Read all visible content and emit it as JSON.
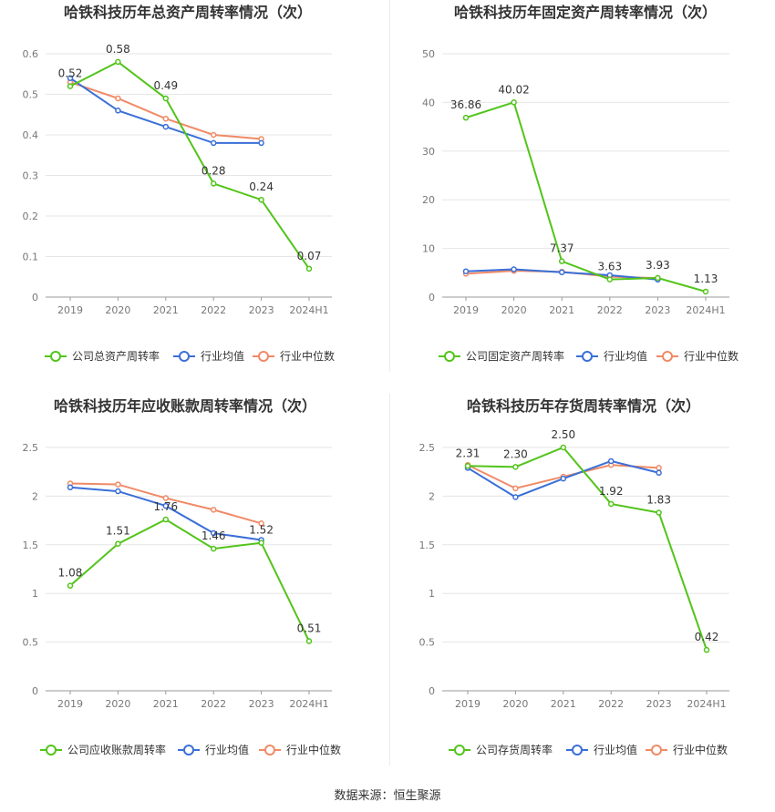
{
  "source_text": "数据来源：恒生聚源",
  "legend_common": {
    "industry_avg": "行业均值",
    "industry_median": "行业中位数"
  },
  "colors": {
    "company": "#52c41a",
    "industry_avg": "#3a6fd8",
    "industry_median": "#f08a66",
    "grid": "#e6e6e6",
    "axis": "#333333"
  },
  "chart_data": [
    {
      "type": "line",
      "title": "哈铁科技历年总资产周转率情况（次）",
      "categories": [
        "2019",
        "2020",
        "2021",
        "2022",
        "2023",
        "2024H1"
      ],
      "ylim": [
        0,
        0.6
      ],
      "yticks": [
        "0",
        "0.1",
        "0.2",
        "0.3",
        "0.4",
        "0.5",
        "0.6"
      ],
      "ytick_values": [
        0,
        0.1,
        0.2,
        0.3,
        0.4,
        0.5,
        0.6
      ],
      "grid": true,
      "legend_position": "bottom",
      "series": [
        {
          "name": "公司总资产周转率",
          "key": "company",
          "values": [
            0.52,
            0.58,
            0.49,
            0.28,
            0.24,
            0.07
          ],
          "labels": [
            "0.52",
            "0.58",
            "0.49",
            "0.28",
            "0.24",
            "0.07"
          ]
        },
        {
          "name": "行业均值",
          "key": "industry_avg",
          "values": [
            0.54,
            0.46,
            0.42,
            0.38,
            0.38,
            null
          ]
        },
        {
          "name": "行业中位数",
          "key": "industry_median",
          "values": [
            0.53,
            0.49,
            0.44,
            0.4,
            0.39,
            null
          ]
        }
      ]
    },
    {
      "type": "line",
      "title": "哈铁科技历年固定资产周转率情况（次）",
      "categories": [
        "2019",
        "2020",
        "2021",
        "2022",
        "2023",
        "2024H1"
      ],
      "ylim": [
        0,
        50
      ],
      "yticks": [
        "0",
        "10",
        "20",
        "30",
        "40",
        "50"
      ],
      "ytick_values": [
        0,
        10,
        20,
        30,
        40,
        50
      ],
      "grid": true,
      "legend_position": "bottom",
      "series": [
        {
          "name": "公司固定资产周转率",
          "key": "company",
          "values": [
            36.86,
            40.02,
            7.37,
            3.63,
            3.93,
            1.13
          ],
          "labels": [
            "36.86",
            "40.02",
            "7.37",
            "3.63",
            "3.93",
            "1.13"
          ]
        },
        {
          "name": "行业均值",
          "key": "industry_avg",
          "values": [
            5.3,
            5.7,
            5.1,
            4.5,
            3.6,
            null
          ]
        },
        {
          "name": "行业中位数",
          "key": "industry_median",
          "values": [
            4.8,
            5.4,
            5.2,
            4.2,
            3.9,
            null
          ]
        }
      ]
    },
    {
      "type": "line",
      "title": "哈铁科技历年应收账款周转率情况（次）",
      "categories": [
        "2019",
        "2020",
        "2021",
        "2022",
        "2023",
        "2024H1"
      ],
      "ylim": [
        0,
        2.5
      ],
      "yticks": [
        "0",
        "0.5",
        "1",
        "1.5",
        "2",
        "2.5"
      ],
      "ytick_values": [
        0,
        0.5,
        1,
        1.5,
        2,
        2.5
      ],
      "grid": true,
      "legend_position": "bottom",
      "series": [
        {
          "name": "公司应收账款周转率",
          "key": "company",
          "values": [
            1.08,
            1.51,
            1.76,
            1.46,
            1.52,
            0.51
          ],
          "labels": [
            "1.08",
            "1.51",
            "1.76",
            "1.46",
            "1.52",
            "0.51"
          ]
        },
        {
          "name": "行业均值",
          "key": "industry_avg",
          "values": [
            2.09,
            2.05,
            1.9,
            1.62,
            1.55,
            null
          ]
        },
        {
          "name": "行业中位数",
          "key": "industry_median",
          "values": [
            2.13,
            2.12,
            1.98,
            1.86,
            1.72,
            null
          ]
        }
      ]
    },
    {
      "type": "line",
      "title": "哈铁科技历年存货周转率情况（次）",
      "categories": [
        "2019",
        "2020",
        "2021",
        "2022",
        "2023",
        "2024H1"
      ],
      "ylim": [
        0,
        2.5
      ],
      "yticks": [
        "0",
        "0.5",
        "1",
        "1.5",
        "2",
        "2.5"
      ],
      "ytick_values": [
        0,
        0.5,
        1,
        1.5,
        2,
        2.5
      ],
      "grid": true,
      "legend_position": "bottom",
      "series": [
        {
          "name": "公司存货周转率",
          "key": "company",
          "values": [
            2.31,
            2.3,
            2.5,
            1.92,
            1.83,
            0.42
          ],
          "labels": [
            "2.31",
            "2.30",
            "2.50",
            "1.92",
            "1.83",
            "0.42"
          ]
        },
        {
          "name": "行业均值",
          "key": "industry_avg",
          "values": [
            2.29,
            1.99,
            2.18,
            2.36,
            2.24,
            null
          ]
        },
        {
          "name": "行业中位数",
          "key": "industry_median",
          "values": [
            2.32,
            2.08,
            2.2,
            2.32,
            2.29,
            null
          ]
        }
      ]
    }
  ]
}
